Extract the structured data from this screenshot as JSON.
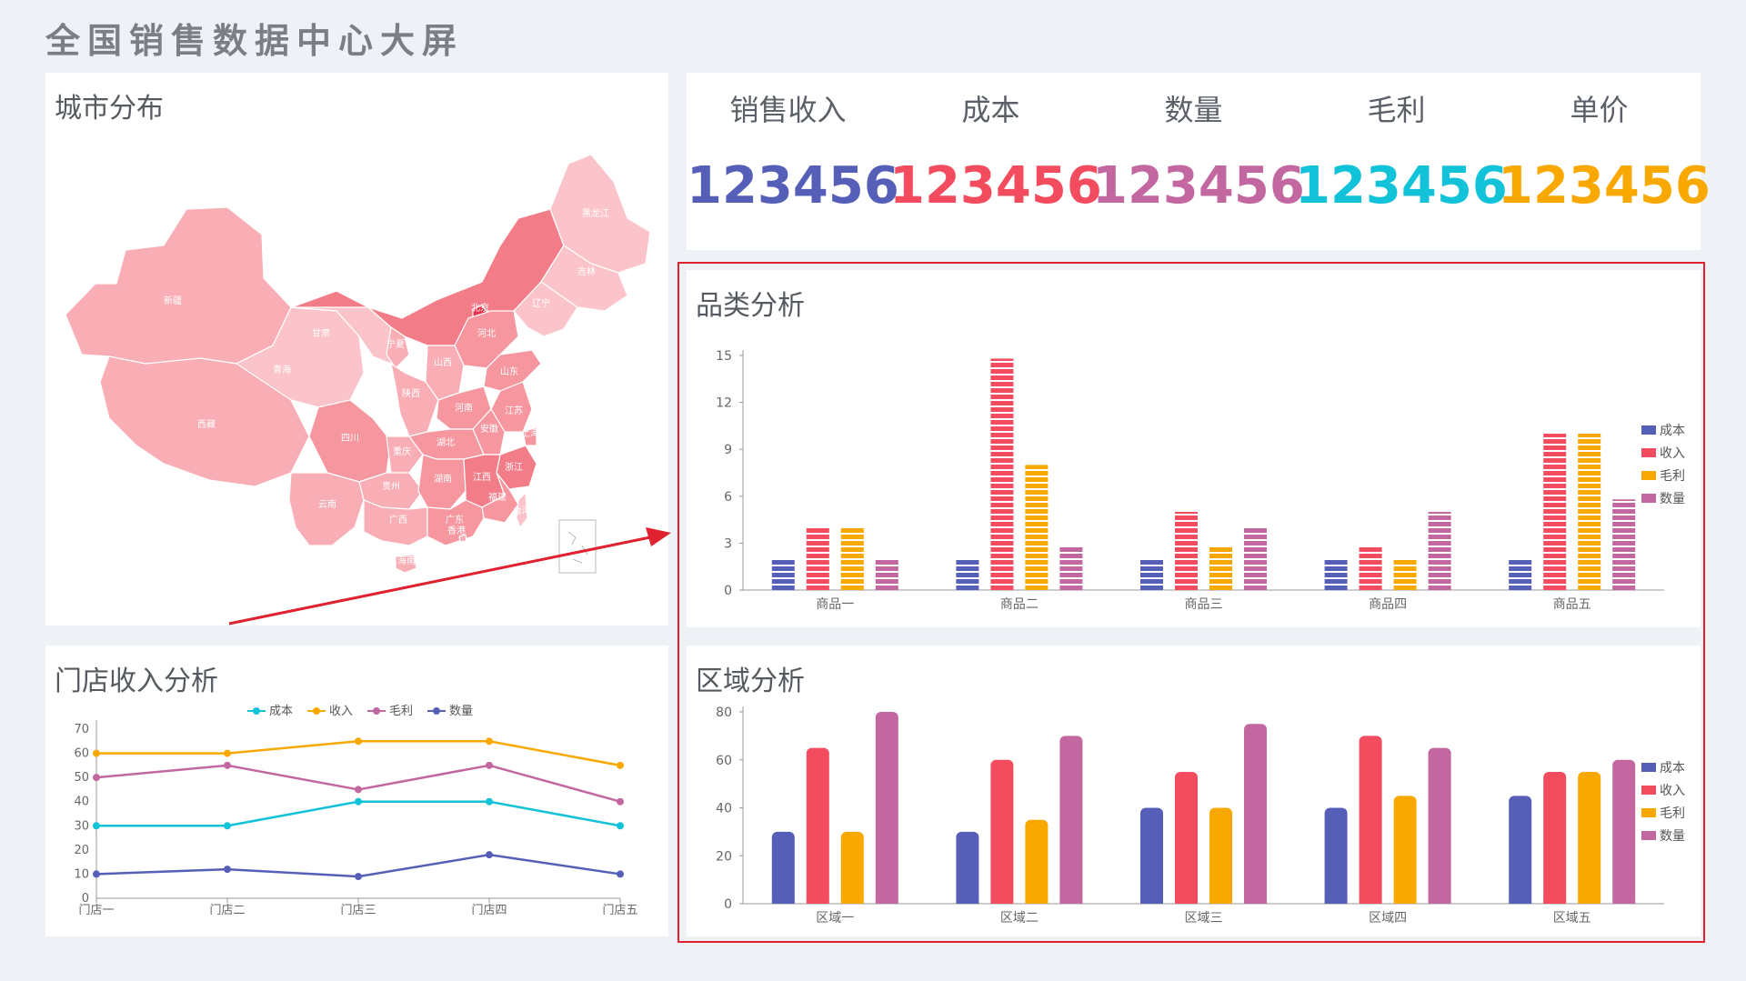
{
  "page_title": "全国销售数据中心大屏",
  "colors": {
    "blue": "#565fb8",
    "red": "#f24c5e",
    "orange": "#f9a800",
    "purple": "#c2679f",
    "cyan": "#12c2d8",
    "arrow": "#e0212f"
  },
  "map": {
    "title": "城市分布",
    "provinces": [
      {
        "name": "新疆",
        "level": 2
      },
      {
        "name": "西藏",
        "level": 2
      },
      {
        "name": "青海",
        "level": 1
      },
      {
        "name": "甘肃",
        "level": 1
      },
      {
        "name": "内蒙古",
        "level": 4
      },
      {
        "name": "黑龙江",
        "level": 1
      },
      {
        "name": "吉林",
        "level": 1
      },
      {
        "name": "辽宁",
        "level": 1
      },
      {
        "name": "北京",
        "level": 5
      },
      {
        "name": "河北",
        "level": 3
      },
      {
        "name": "宁夏",
        "level": 2
      },
      {
        "name": "山西",
        "level": 2
      },
      {
        "name": "山东",
        "level": 3
      },
      {
        "name": "陕西",
        "level": 2
      },
      {
        "name": "河南",
        "level": 3
      },
      {
        "name": "江苏",
        "level": 3
      },
      {
        "name": "安徽",
        "level": 3
      },
      {
        "name": "上海",
        "level": 3
      },
      {
        "name": "四川",
        "level": 3
      },
      {
        "name": "重庆",
        "level": 2
      },
      {
        "name": "湖北",
        "level": 3
      },
      {
        "name": "浙江",
        "level": 4
      },
      {
        "name": "贵州",
        "level": 2
      },
      {
        "name": "湖南",
        "level": 3
      },
      {
        "name": "江西",
        "level": 4
      },
      {
        "name": "福建",
        "level": 3
      },
      {
        "name": "云南",
        "level": 2
      },
      {
        "name": "广西",
        "level": 2
      },
      {
        "name": "广东",
        "level": 3
      },
      {
        "name": "香港",
        "level": 2
      },
      {
        "name": "台湾",
        "level": 1
      },
      {
        "name": "海南",
        "level": 2
      }
    ]
  },
  "kpis": [
    {
      "label": "销售收入",
      "value": "123456",
      "color": "#565fb8"
    },
    {
      "label": "成本",
      "value": "123456",
      "color": "#f24c5e"
    },
    {
      "label": "数量",
      "value": "123456",
      "color": "#c2679f"
    },
    {
      "label": "毛利",
      "value": "123456",
      "color": "#12c2d8"
    },
    {
      "label": "单价",
      "value": "123456",
      "color": "#f9a800"
    }
  ],
  "store_chart": {
    "title": "门店收入分析",
    "chart_data": {
      "type": "line",
      "categories": [
        "门店一",
        "门店二",
        "门店三",
        "门店四",
        "门店五"
      ],
      "series": [
        {
          "name": "成本",
          "color": "#12c2d8",
          "values": [
            30,
            30,
            40,
            40,
            30
          ]
        },
        {
          "name": "收入",
          "color": "#f9a800",
          "values": [
            60,
            60,
            65,
            65,
            55
          ]
        },
        {
          "name": "毛利",
          "color": "#c2679f",
          "values": [
            50,
            55,
            45,
            55,
            40
          ]
        },
        {
          "name": "数量",
          "color": "#565fb8",
          "values": [
            10,
            12,
            9,
            18,
            10
          ]
        }
      ],
      "ylim": [
        0,
        70
      ],
      "yticks": [
        0,
        10,
        20,
        30,
        40,
        50,
        60,
        70
      ],
      "legend": "top-center"
    }
  },
  "category_chart": {
    "title": "品类分析",
    "chart_data": {
      "type": "bar",
      "categories": [
        "商品一",
        "商品二",
        "商品三",
        "商品四",
        "商品五"
      ],
      "series": [
        {
          "name": "成本",
          "color": "#565fb8",
          "values": [
            2,
            2,
            2,
            2,
            2
          ]
        },
        {
          "name": "收入",
          "color": "#f24c5e",
          "values": [
            4,
            14.8,
            5,
            2.8,
            10
          ]
        },
        {
          "name": "毛利",
          "color": "#f9a800",
          "values": [
            4,
            8,
            2.8,
            2,
            10
          ]
        },
        {
          "name": "数量",
          "color": "#c2679f",
          "values": [
            2,
            2.8,
            4,
            5,
            5.8
          ]
        }
      ],
      "ylim": [
        0,
        15
      ],
      "yticks": [
        0,
        3,
        6,
        9,
        12,
        15
      ],
      "legend": "right"
    }
  },
  "region_chart": {
    "title": "区域分析",
    "chart_data": {
      "type": "bar",
      "categories": [
        "区域一",
        "区域二",
        "区域三",
        "区域四",
        "区域五"
      ],
      "series": [
        {
          "name": "成本",
          "color": "#565fb8",
          "values": [
            30,
            30,
            40,
            40,
            45
          ]
        },
        {
          "name": "收入",
          "color": "#f24c5e",
          "values": [
            65,
            60,
            55,
            70,
            55
          ]
        },
        {
          "name": "毛利",
          "color": "#f9a800",
          "values": [
            30,
            35,
            40,
            45,
            55
          ]
        },
        {
          "name": "数量",
          "color": "#c2679f",
          "values": [
            80,
            70,
            75,
            65,
            60
          ]
        }
      ],
      "ylim": [
        0,
        80
      ],
      "yticks": [
        0,
        20,
        40,
        60,
        80
      ],
      "legend": "right"
    }
  }
}
